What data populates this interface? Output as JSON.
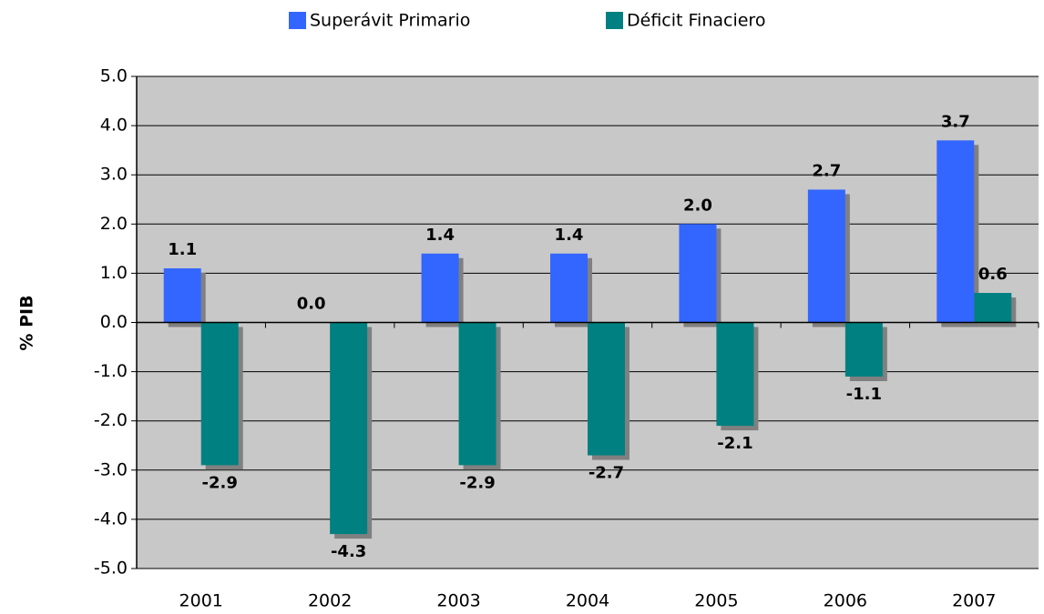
{
  "chart_data": {
    "type": "bar",
    "y_label": "% PIB",
    "categories": [
      "2001",
      "2002",
      "2003",
      "2004",
      "2005",
      "2006",
      "2007"
    ],
    "series": [
      {
        "name": "Superávit Primario",
        "color": "#3366ff",
        "values": [
          1.1,
          0,
          1.4,
          1.4,
          2,
          2.7,
          3.7
        ],
        "value_labels": [
          "1.1",
          "0.0",
          "1.4",
          "1.4",
          "2.0",
          "2.7",
          "3.7"
        ]
      },
      {
        "name": "Déficit Finaciero",
        "color": "#008080",
        "values": [
          -2.9,
          -4.3,
          -2.9,
          -2.7,
          -2.1,
          -1.1,
          0.6
        ],
        "value_labels": [
          "-2.9",
          "-4.3",
          "-2.9",
          "-2.7",
          "-2.1",
          "-1.1",
          "0.6"
        ]
      }
    ],
    "ylim": [
      -5,
      5
    ],
    "yticks": [
      {
        "value": -5,
        "label": "-5.0"
      },
      {
        "value": -4,
        "label": "-4.0"
      },
      {
        "value": -3,
        "label": "-3.0"
      },
      {
        "value": -2,
        "label": "-2.0"
      },
      {
        "value": -1,
        "label": "-1.0"
      },
      {
        "value": 0,
        "label": "0.0"
      },
      {
        "value": 1,
        "label": "1.0"
      },
      {
        "value": 2,
        "label": "2.0"
      },
      {
        "value": 3,
        "label": "3.0"
      },
      {
        "value": 4,
        "label": "4.0"
      },
      {
        "value": 5,
        "label": "5.0"
      }
    ],
    "grid": true,
    "legend": "top"
  }
}
